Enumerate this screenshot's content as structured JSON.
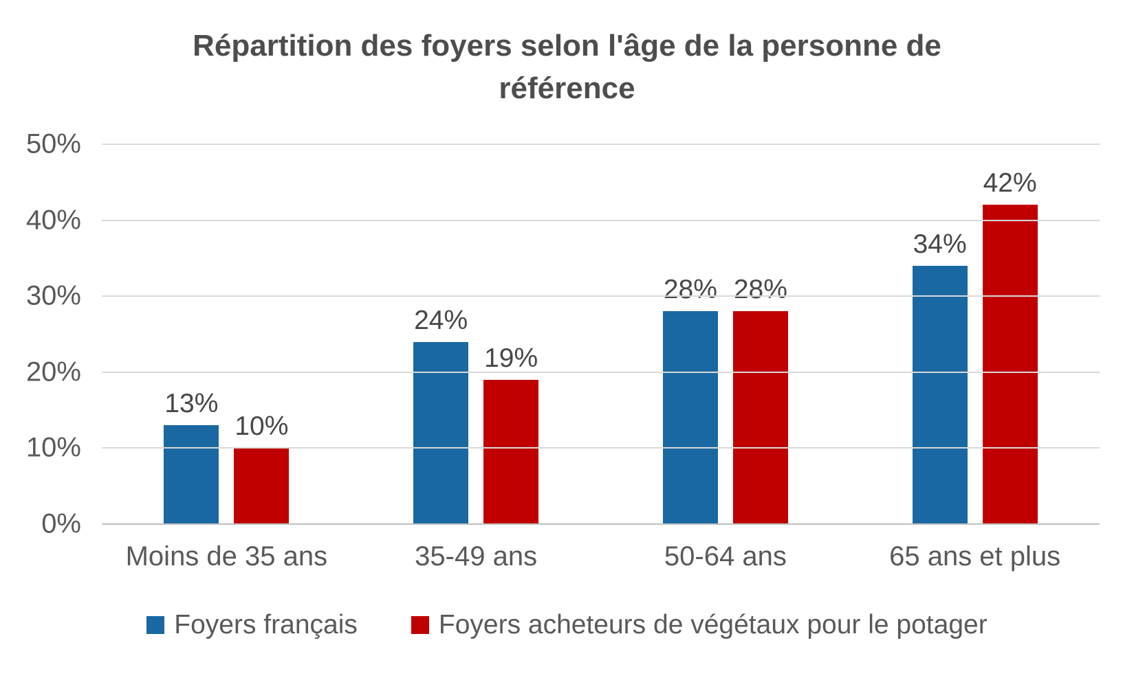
{
  "chart_data": {
    "type": "bar",
    "title": "Répartition des foyers selon l'âge de la personne de référence",
    "categories": [
      "Moins de 35 ans",
      "35-49 ans",
      "50-64 ans",
      "65 ans et plus"
    ],
    "series": [
      {
        "name": "Foyers français",
        "color": "#1968a2",
        "values": [
          13,
          24,
          28,
          34
        ]
      },
      {
        "name": "Foyers acheteurs de végétaux pour le potager",
        "color": "#c00000",
        "values": [
          10,
          19,
          28,
          42
        ]
      }
    ],
    "value_suffix": "%",
    "data_labels": [
      [
        "13%",
        "24%",
        "28%",
        "34%"
      ],
      [
        "10%",
        "19%",
        "28%",
        "42%"
      ]
    ],
    "y_ticks": [
      "50%",
      "40%",
      "30%",
      "20%",
      "10%",
      "0%"
    ],
    "ylim": [
      0,
      50
    ],
    "grid": true,
    "legend_position": "bottom",
    "colors": {
      "series1": "#1968a2",
      "series2": "#c00000",
      "gridline": "#d9d9d9",
      "axis_line": "#bfbfbf",
      "title_text": "#4d4d4d",
      "axis_text": "#595959",
      "label_text": "#474747",
      "background": "#ffffff"
    }
  }
}
